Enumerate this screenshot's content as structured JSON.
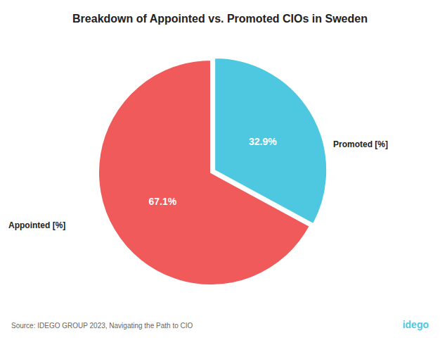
{
  "chart_data": {
    "type": "pie",
    "title": "Breakdown of Appointed vs. Promoted CIOs in Sweden",
    "categories": [
      "Promoted [%]",
      "Appointed [%]"
    ],
    "values": [
      32.9,
      67.1
    ],
    "value_labels": [
      "32.9%",
      "67.1%"
    ],
    "colors": [
      "#4EC8E0",
      "#F05A5A"
    ],
    "data_labels": true,
    "annotations": [
      "Source: IDEGO GROUP 2023, Navigating the Path to CIO",
      "idego"
    ]
  }
}
